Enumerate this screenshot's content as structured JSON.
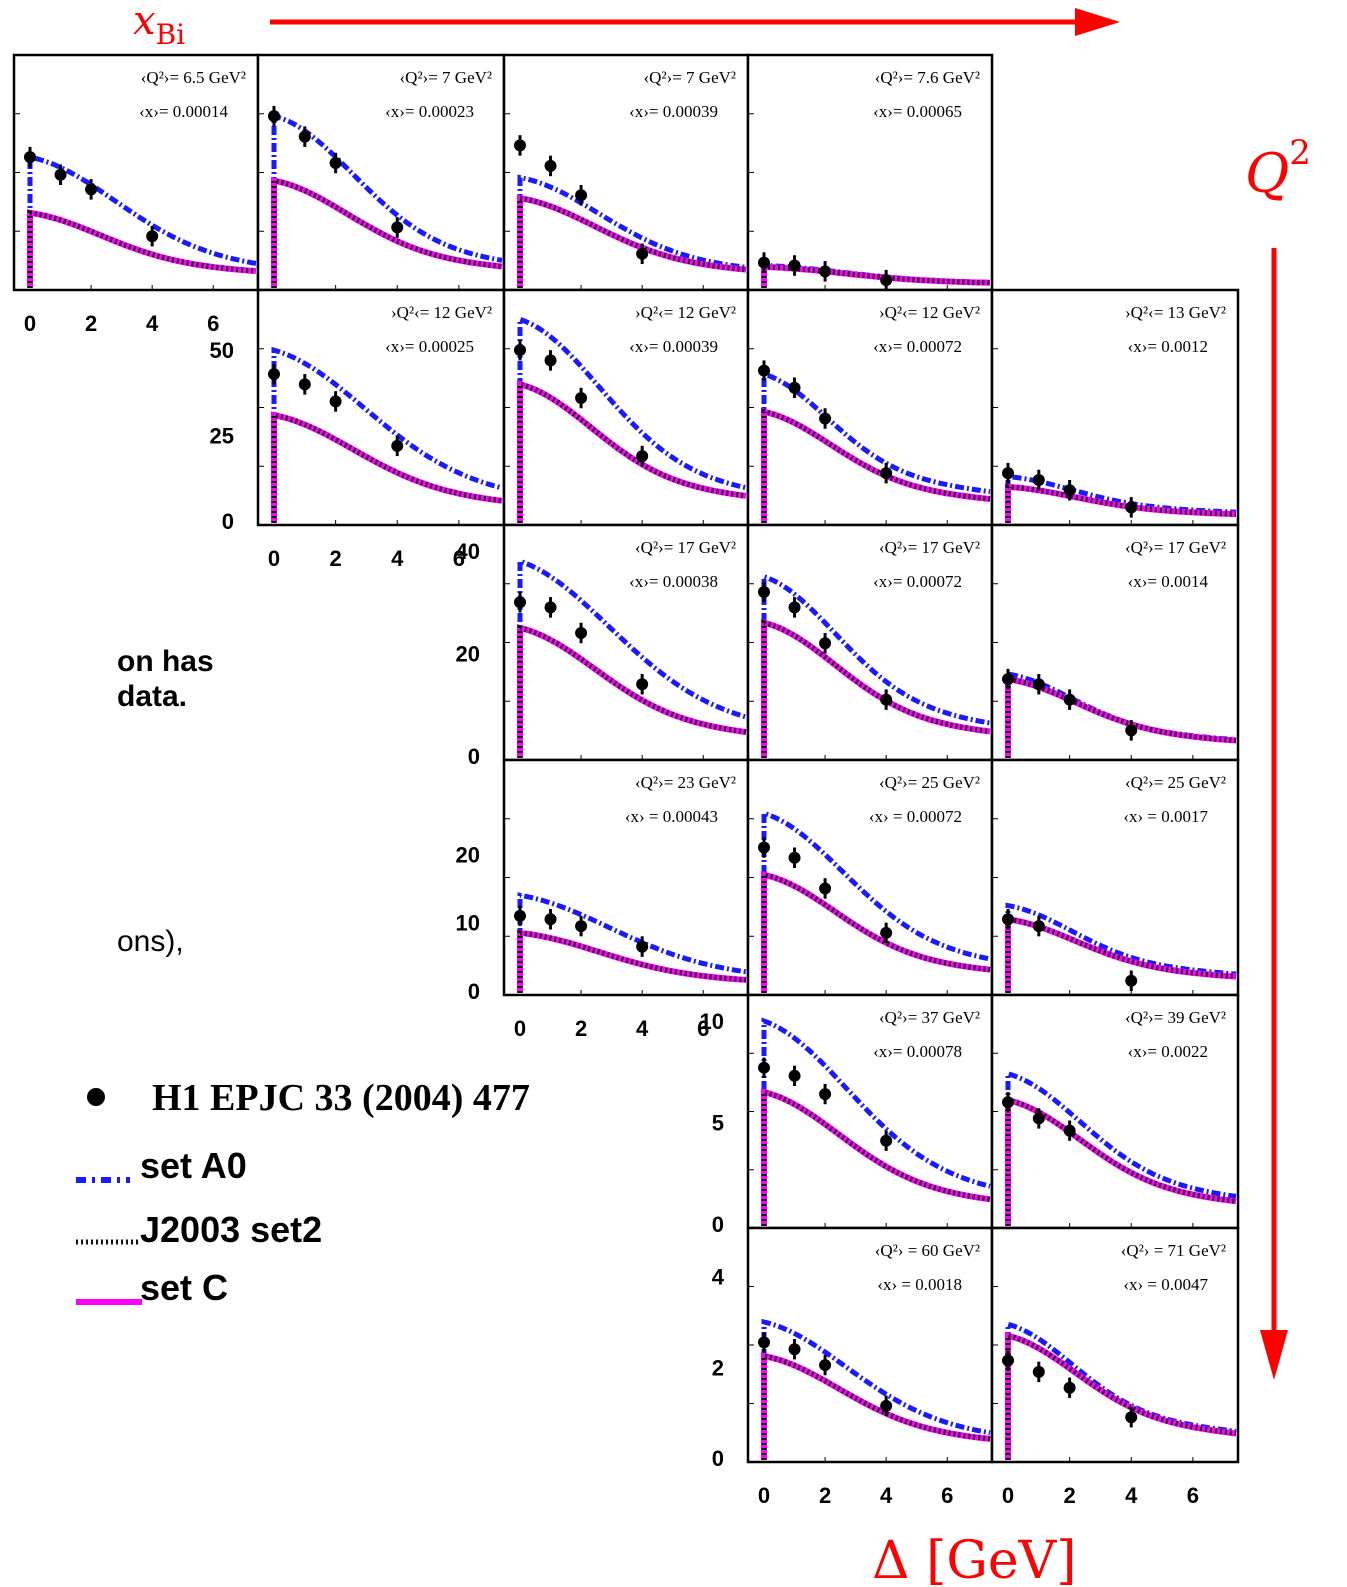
{
  "colors": {
    "arrow": "#ff0000",
    "setA0": "#1a1aff",
    "j2003": "#111111",
    "setC": "#ff00ff",
    "points": "#000000"
  },
  "labels": {
    "xbj_main": "x",
    "xbj_sub": "Bi",
    "q2_main": "Q",
    "q2_sup": "2",
    "xaxis": "Δ [GeV]",
    "text1": "on has",
    "text2": "data.",
    "text3": "ons),"
  },
  "legend": [
    {
      "key": "data",
      "label": "H1 EPJC 33 (2004) 477",
      "style": "marker"
    },
    {
      "key": "setA0",
      "label": "set A0",
      "style": "dashdot"
    },
    {
      "key": "j2003",
      "label": "J2003 set2",
      "style": "dotted"
    },
    {
      "key": "setC",
      "label": "set C",
      "style": "solid"
    }
  ],
  "chart_data": {
    "type": "scatter",
    "xrange": [
      0,
      7.4
    ],
    "x_ticks": [
      "0",
      "2",
      "4",
      "6"
    ],
    "panels": [
      {
        "row": 0,
        "col": 0,
        "q2": "‹Q²›= 6.5 GeV²",
        "x": "‹x›= 0.00014",
        "ymax": 70,
        "yticks": [],
        "xticks": true,
        "points": [
          [
            0,
            44
          ],
          [
            1,
            38
          ],
          [
            2,
            33
          ],
          [
            4,
            17
          ]
        ],
        "A0": [
          0,
          44,
          2.16,
          0.38
        ],
        "C": [
          0,
          25,
          1.8,
          0.5
        ]
      },
      {
        "row": 0,
        "col": 1,
        "q2": "‹Q²›= 7 GeV²",
        "x": "‹x›= 0.00023",
        "ymax": 70,
        "yticks": [],
        "xticks": false,
        "points": [
          [
            0,
            58
          ],
          [
            1,
            51
          ],
          [
            2,
            42
          ],
          [
            4,
            20
          ]
        ],
        "A0": [
          0,
          58,
          1.95,
          0.35
        ],
        "C": [
          0,
          36,
          1.85,
          0.45
        ]
      },
      {
        "row": 0,
        "col": 2,
        "q2": "‹Q²›= 7 GeV²",
        "x": "‹x›= 0.00039",
        "ymax": 70,
        "yticks": [],
        "xticks": false,
        "points": [
          [
            0,
            48
          ],
          [
            1,
            41
          ],
          [
            2,
            31
          ],
          [
            4,
            11
          ]
        ],
        "A0": [
          0,
          37,
          2.0,
          0.4
        ],
        "C": [
          0,
          30,
          1.9,
          0.45
        ]
      },
      {
        "row": 0,
        "col": 3,
        "q2": "‹Q²›= 7.6 GeV²",
        "x": "‹x›= 0.00065",
        "ymax": 70,
        "yticks": [],
        "xticks": false,
        "points": [
          [
            0,
            8
          ],
          [
            1,
            7
          ],
          [
            2,
            5
          ],
          [
            4,
            2
          ]
        ],
        "A0": [
          0,
          7,
          2.0,
          0.4
        ],
        "C": [
          0,
          6.5,
          2.0,
          0.4
        ]
      },
      {
        "row": 1,
        "col": 1,
        "q2": "›Q²‹= 12 GeV²",
        "x": "‹x›= 0.00025",
        "ymax": 60,
        "yticks": [
          "50",
          "25",
          "0"
        ],
        "ytickVals": [
          50,
          25,
          0
        ],
        "xticks": true,
        "points": [
          [
            0,
            43
          ],
          [
            1,
            40
          ],
          [
            2,
            35
          ],
          [
            4,
            22
          ]
        ],
        "A0": [
          0,
          50,
          2.3,
          0.4
        ],
        "C": [
          0,
          31,
          2.0,
          0.45
        ]
      },
      {
        "row": 1,
        "col": 2,
        "q2": "›Q²‹= 12 GeV²",
        "x": "‹x›= 0.00039",
        "ymax": 60,
        "yticks": [],
        "xticks": false,
        "points": [
          [
            0,
            50
          ],
          [
            1,
            47
          ],
          [
            2,
            36
          ],
          [
            4,
            19
          ]
        ],
        "A0": [
          0,
          59,
          2.0,
          0.38
        ],
        "C": [
          0,
          40,
          1.8,
          0.45
        ]
      },
      {
        "row": 1,
        "col": 3,
        "q2": "›Q²‹= 12 GeV²",
        "x": "‹x›= 0.00072",
        "ymax": 60,
        "yticks": [],
        "xticks": false,
        "points": [
          [
            0,
            44
          ],
          [
            1,
            39
          ],
          [
            2,
            30
          ],
          [
            4,
            14
          ]
        ],
        "A0": [
          0,
          43,
          1.6,
          0.5
        ],
        "C": [
          0,
          32,
          1.7,
          0.5
        ]
      },
      {
        "row": 1,
        "col": 4,
        "q2": "›Q²‹= 13 GeV²",
        "x": "‹x›= 0.0012",
        "ymax": 60,
        "yticks": [],
        "xticks": false,
        "points": [
          [
            0,
            14
          ],
          [
            1,
            12
          ],
          [
            2,
            9
          ],
          [
            4,
            4
          ]
        ],
        "A0": [
          0,
          13,
          1.6,
          0.5
        ],
        "C": [
          0,
          10,
          1.7,
          0.5
        ]
      },
      {
        "row": 2,
        "col": 2,
        "q2": "‹Q²›= 17 GeV²",
        "x": "‹x›= 0.00038",
        "ymax": 40,
        "yticks": [
          "40",
          "20",
          "0"
        ],
        "ytickVals": [
          40,
          20,
          0
        ],
        "xticks": false,
        "points": [
          [
            0,
            30
          ],
          [
            1,
            29
          ],
          [
            2,
            24
          ],
          [
            4,
            14
          ]
        ],
        "A0": [
          0,
          38,
          2.3,
          0.42
        ],
        "C": [
          0,
          25,
          1.9,
          0.45
        ]
      },
      {
        "row": 2,
        "col": 3,
        "q2": "‹Q²›= 17 GeV²",
        "x": "‹x›= 0.00072",
        "ymax": 40,
        "yticks": [],
        "xticks": false,
        "points": [
          [
            0,
            32
          ],
          [
            1,
            29
          ],
          [
            2,
            22
          ],
          [
            4,
            11
          ]
        ],
        "A0": [
          0,
          35,
          1.8,
          0.45
        ],
        "C": [
          0,
          26,
          1.8,
          0.45
        ]
      },
      {
        "row": 2,
        "col": 4,
        "q2": "‹Q²›= 17 GeV²",
        "x": "‹x›= 0.0014",
        "ymax": 40,
        "yticks": [],
        "xticks": false,
        "points": [
          [
            0,
            15
          ],
          [
            1,
            14
          ],
          [
            2,
            11
          ],
          [
            4,
            5
          ]
        ],
        "A0": [
          0,
          16,
          1.6,
          0.5
        ],
        "C": [
          0,
          15,
          1.7,
          0.5
        ]
      },
      {
        "row": 3,
        "col": 2,
        "q2": "‹Q²›= 23 GeV²",
        "x": "‹x› = 0.00043",
        "ymax": 30,
        "yticks": [
          "20",
          "10",
          "0"
        ],
        "ytickVals": [
          20,
          10,
          0
        ],
        "xticks": true,
        "points": [
          [
            0,
            11
          ],
          [
            1,
            10.5
          ],
          [
            2,
            9.5
          ],
          [
            4,
            6.5
          ]
        ],
        "A0": [
          0,
          14,
          2.3,
          0.42
        ],
        "C": [
          0,
          8.5,
          2.0,
          0.45
        ]
      },
      {
        "row": 3,
        "col": 3,
        "q2": "‹Q²›= 25 GeV²",
        "x": "‹x› = 0.00072",
        "ymax": 30,
        "yticks": [],
        "xticks": false,
        "points": [
          [
            0,
            21
          ],
          [
            1,
            19.5
          ],
          [
            2,
            15
          ],
          [
            4,
            8.5
          ]
        ],
        "A0": [
          0,
          26,
          2.0,
          0.42
        ],
        "C": [
          0,
          17,
          1.8,
          0.45
        ]
      },
      {
        "row": 3,
        "col": 4,
        "q2": "‹Q²›= 25 GeV²",
        "x": "‹x› = 0.0017",
        "ymax": 30,
        "yticks": [],
        "xticks": false,
        "points": [
          [
            0,
            10.5
          ],
          [
            1,
            9.5
          ],
          [
            4,
            1.5
          ]
        ],
        "A0": [
          0,
          12.5,
          1.6,
          0.5
        ],
        "C": [
          0,
          10.5,
          1.7,
          0.5
        ]
      },
      {
        "row": 4,
        "col": 3,
        "q2": "‹Q²›= 37 GeV²",
        "x": "‹x›= 0.00078",
        "ymax": 10,
        "yticks": [
          "10",
          "5",
          "0"
        ],
        "ytickVals": [
          10,
          5,
          0
        ],
        "xticks": false,
        "points": [
          [
            0,
            7.7
          ],
          [
            1,
            7.3
          ],
          [
            2,
            6.4
          ],
          [
            4,
            4.1
          ]
        ],
        "A0": [
          0,
          10,
          2.1,
          0.42
        ],
        "C": [
          0,
          6.5,
          1.9,
          0.45
        ]
      },
      {
        "row": 4,
        "col": 4,
        "q2": "‹Q²›= 39 GeV²",
        "x": "‹x›= 0.0022",
        "ymax": 10,
        "yticks": [],
        "xticks": false,
        "points": [
          [
            0,
            6
          ],
          [
            1,
            5.2
          ],
          [
            2,
            4.6
          ]
        ],
        "A0": [
          0,
          7.4,
          1.8,
          0.45
        ],
        "C": [
          0,
          6.1,
          1.8,
          0.45
        ]
      },
      {
        "row": 5,
        "col": 3,
        "q2": "‹Q²› = 60 GeV²",
        "x": "‹x› = 0.0018",
        "ymax": 4.5,
        "yticks": [
          "4",
          "2",
          "0"
        ],
        "ytickVals": [
          4,
          2,
          0
        ],
        "xticks": true,
        "points": [
          [
            0,
            2.55
          ],
          [
            1,
            2.4
          ],
          [
            2,
            2.05
          ],
          [
            4,
            1.15
          ]
        ],
        "A0": [
          0,
          3.0,
          2.1,
          0.42
        ],
        "C": [
          0,
          2.25,
          1.9,
          0.45
        ]
      },
      {
        "row": 5,
        "col": 4,
        "q2": "‹Q²› = 71 GeV²",
        "x": "‹x› = 0.0047",
        "ymax": 4.5,
        "yticks": [],
        "xticks": true,
        "points": [
          [
            0,
            2.15
          ],
          [
            1,
            1.9
          ],
          [
            2,
            1.55
          ],
          [
            4,
            0.9
          ]
        ],
        "A0": [
          0,
          2.95,
          1.6,
          0.5
        ],
        "C": [
          0,
          2.7,
          1.7,
          0.5
        ]
      }
    ]
  }
}
